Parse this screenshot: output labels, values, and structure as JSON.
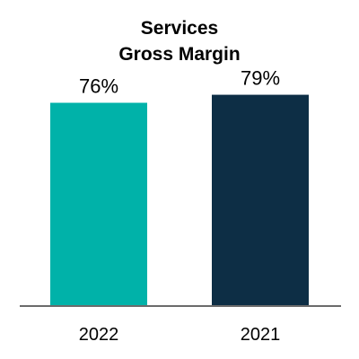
{
  "chart_data": {
    "type": "bar",
    "title": [
      "Services",
      "Gross Margin"
    ],
    "categories": [
      "2022",
      "2021"
    ],
    "values": [
      76,
      79
    ],
    "data_labels": [
      "76%",
      "79%"
    ],
    "bar_colors": [
      "#00b2a9",
      "#0d2e45"
    ],
    "axis_color": "#6b6b6b",
    "ylim": [
      0,
      100
    ],
    "grid": false,
    "legend": "none"
  }
}
